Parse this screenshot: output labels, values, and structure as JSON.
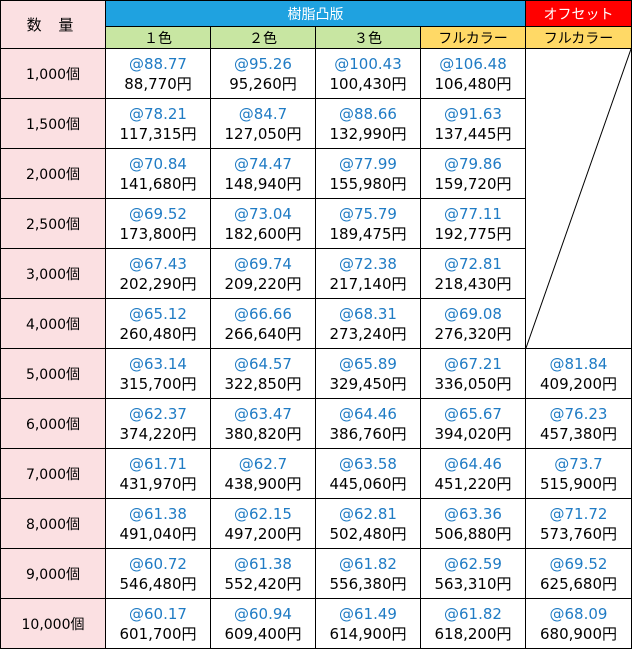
{
  "header": {
    "quantity_label": "数 量",
    "resin_group": "樹脂凸版",
    "offset_group": "オフセット",
    "columns": [
      "１色",
      "２色",
      "３色",
      "フルカラー",
      "フルカラー"
    ]
  },
  "rows": [
    {
      "qty": "1,000個",
      "cells": [
        [
          "@88.77",
          "88,770円"
        ],
        [
          "@95.26",
          "95,260円"
        ],
        [
          "@100.43",
          "100,430円"
        ],
        [
          "@106.48",
          "106,480円"
        ]
      ]
    },
    {
      "qty": "1,500個",
      "cells": [
        [
          "@78.21",
          "117,315円"
        ],
        [
          "@84.7",
          "127,050円"
        ],
        [
          "@88.66",
          "132,990円"
        ],
        [
          "@91.63",
          "137,445円"
        ]
      ]
    },
    {
      "qty": "2,000個",
      "cells": [
        [
          "@70.84",
          "141,680円"
        ],
        [
          "@74.47",
          "148,940円"
        ],
        [
          "@77.99",
          "155,980円"
        ],
        [
          "@79.86",
          "159,720円"
        ]
      ]
    },
    {
      "qty": "2,500個",
      "cells": [
        [
          "@69.52",
          "173,800円"
        ],
        [
          "@73.04",
          "182,600円"
        ],
        [
          "@75.79",
          "189,475円"
        ],
        [
          "@77.11",
          "192,775円"
        ]
      ]
    },
    {
      "qty": "3,000個",
      "cells": [
        [
          "@67.43",
          "202,290円"
        ],
        [
          "@69.74",
          "209,220円"
        ],
        [
          "@72.38",
          "217,140円"
        ],
        [
          "@72.81",
          "218,430円"
        ]
      ]
    },
    {
      "qty": "4,000個",
      "cells": [
        [
          "@65.12",
          "260,480円"
        ],
        [
          "@66.66",
          "266,640円"
        ],
        [
          "@68.31",
          "273,240円"
        ],
        [
          "@69.08",
          "276,320円"
        ]
      ]
    },
    {
      "qty": "5,000個",
      "cells": [
        [
          "@63.14",
          "315,700円"
        ],
        [
          "@64.57",
          "322,850円"
        ],
        [
          "@65.89",
          "329,450円"
        ],
        [
          "@67.21",
          "336,050円"
        ],
        [
          "@81.84",
          "409,200円"
        ]
      ]
    },
    {
      "qty": "6,000個",
      "cells": [
        [
          "@62.37",
          "374,220円"
        ],
        [
          "@63.47",
          "380,820円"
        ],
        [
          "@64.46",
          "386,760円"
        ],
        [
          "@65.67",
          "394,020円"
        ],
        [
          "@76.23",
          "457,380円"
        ]
      ]
    },
    {
      "qty": "7,000個",
      "cells": [
        [
          "@61.71",
          "431,970円"
        ],
        [
          "@62.7",
          "438,900円"
        ],
        [
          "@63.58",
          "445,060円"
        ],
        [
          "@64.46",
          "451,220円"
        ],
        [
          "@73.7",
          "515,900円"
        ]
      ]
    },
    {
      "qty": "8,000個",
      "cells": [
        [
          "@61.38",
          "491,040円"
        ],
        [
          "@62.15",
          "497,200円"
        ],
        [
          "@62.81",
          "502,480円"
        ],
        [
          "@63.36",
          "506,880円"
        ],
        [
          "@71.72",
          "573,760円"
        ]
      ]
    },
    {
      "qty": "9,000個",
      "cells": [
        [
          "@60.72",
          "546,480円"
        ],
        [
          "@61.38",
          "552,420円"
        ],
        [
          "@61.82",
          "556,380円"
        ],
        [
          "@62.59",
          "563,310円"
        ],
        [
          "@69.52",
          "625,680円"
        ]
      ]
    },
    {
      "qty": "10,000個",
      "cells": [
        [
          "@60.17",
          "601,700円"
        ],
        [
          "@60.94",
          "609,400円"
        ],
        [
          "@61.49",
          "614,900円"
        ],
        [
          "@61.82",
          "618,200円"
        ],
        [
          "@68.09",
          "680,900円"
        ]
      ]
    }
  ],
  "colors": {
    "resin_header": "#1fa2e0",
    "offset_header": "#ff0000",
    "qty_column": "#fbe0e2",
    "color_columns": "#c8e6a2",
    "fullcolor_columns": "#ffd966",
    "unit_price_text": "#1f7bc4"
  }
}
